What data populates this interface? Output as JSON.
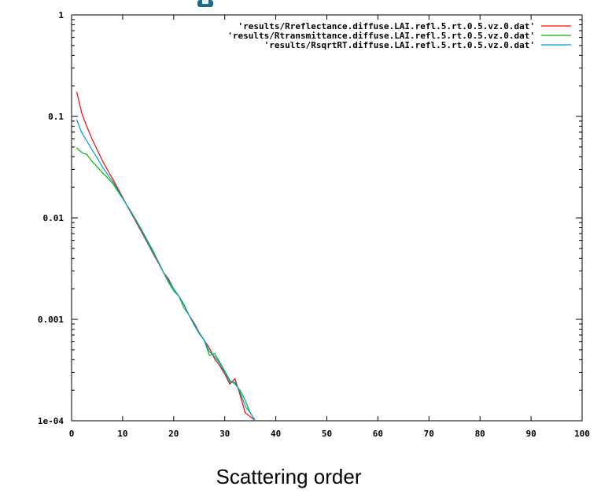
{
  "chart_data": {
    "type": "line",
    "title": "",
    "xlabel": "Scattering order",
    "ylabel": "",
    "xlim": [
      0,
      100
    ],
    "ylim": [
      0.0001,
      1
    ],
    "yscale": "log",
    "grid": false,
    "legend_position": "top-right",
    "x_ticks": [
      "0",
      "10",
      "20",
      "30",
      "40",
      "50",
      "60",
      "70",
      "80",
      "90",
      "100"
    ],
    "y_ticks": [
      "1e-04",
      "0.001",
      "0.01",
      "0.1",
      "1"
    ],
    "series": [
      {
        "name": "'results/Rreflectance.diffuse.LAI.refl.5.rt.0.5.vz.0.dat'",
        "color": "#ff0000",
        "x": [
          1,
          2,
          3,
          4,
          5,
          6,
          7,
          8,
          9,
          10,
          11,
          12,
          13,
          14,
          15,
          16,
          17,
          18,
          19,
          20,
          21,
          22,
          23,
          24,
          25,
          26,
          27,
          28,
          29,
          30,
          31,
          32,
          33,
          34,
          35,
          36
        ],
        "y": [
          0.175,
          0.107,
          0.079,
          0.06,
          0.047,
          0.037,
          0.03,
          0.0245,
          0.0198,
          0.016,
          0.0128,
          0.0104,
          0.0084,
          0.0068,
          0.0055,
          0.0044,
          0.0036,
          0.0029,
          0.0025,
          0.002,
          0.0017,
          0.0014,
          0.0011,
          0.00092,
          0.00074,
          0.00062,
          0.00052,
          0.00041,
          0.00035,
          0.00029,
          0.00023,
          0.00026,
          0.00018,
          0.00012,
          0.00011,
          0.0001
        ]
      },
      {
        "name": "'results/Rtransmittance.diffuse.LAI.refl.5.rt.0.5.vz.0.dat'",
        "color": "#00bb00",
        "x": [
          1,
          2,
          3,
          4,
          5,
          6,
          7,
          8,
          9,
          10,
          11,
          12,
          13,
          14,
          15,
          16,
          17,
          18,
          19,
          20,
          21,
          22,
          23,
          24,
          25,
          26,
          27,
          28,
          29,
          30,
          31,
          32,
          33,
          34,
          35,
          36
        ],
        "y": [
          0.049,
          0.044,
          0.042,
          0.036,
          0.032,
          0.028,
          0.025,
          0.022,
          0.0185,
          0.0155,
          0.013,
          0.0108,
          0.0088,
          0.0072,
          0.0058,
          0.0047,
          0.0037,
          0.0029,
          0.0023,
          0.0019,
          0.0017,
          0.0013,
          0.0011,
          0.00088,
          0.00072,
          0.00062,
          0.00044,
          0.00046,
          0.00038,
          0.00031,
          0.00025,
          0.00023,
          0.0002,
          0.00016,
          0.00012,
          0.0001
        ]
      },
      {
        "name": "'results/RsqrtRT.diffuse.LAI.refl.5.rt.0.5.vz.0.dat'",
        "color": "#0099dd",
        "x": [
          1,
          2,
          3,
          4,
          5,
          6,
          7,
          8,
          9,
          10,
          11,
          12,
          13,
          14,
          15,
          16,
          17,
          18,
          19,
          20,
          21,
          22,
          23,
          24,
          25,
          26,
          27,
          28,
          29,
          30,
          31,
          32,
          33,
          34,
          35,
          36
        ],
        "y": [
          0.093,
          0.069,
          0.057,
          0.047,
          0.039,
          0.032,
          0.027,
          0.023,
          0.0192,
          0.0157,
          0.0129,
          0.0106,
          0.0086,
          0.007,
          0.0056,
          0.0045,
          0.0037,
          0.0029,
          0.0024,
          0.002,
          0.0017,
          0.0014,
          0.0011,
          0.0009,
          0.00073,
          0.00062,
          0.00048,
          0.00043,
          0.00037,
          0.0003,
          0.00024,
          0.00024,
          0.00019,
          0.00014,
          0.00012,
          0.0001
        ]
      }
    ]
  }
}
